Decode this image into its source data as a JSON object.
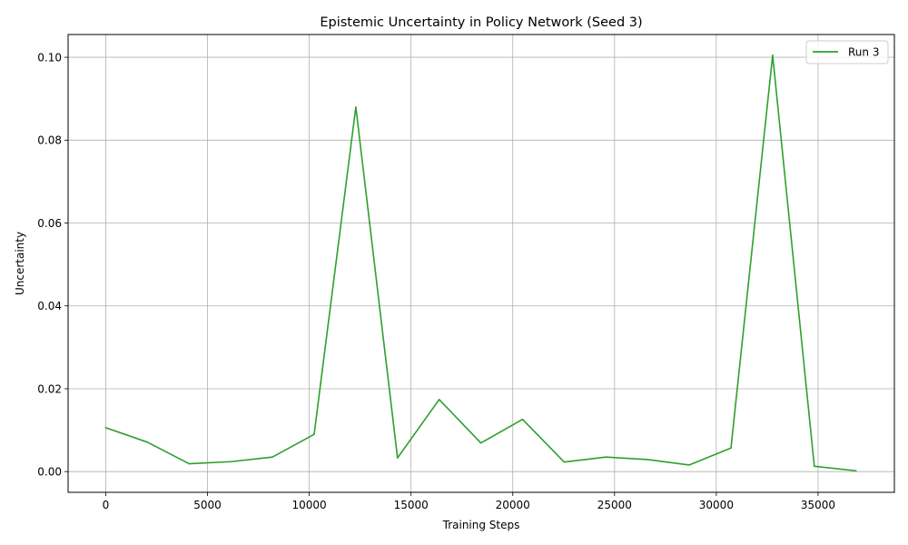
{
  "chart_data": {
    "type": "line",
    "title": "Epistemic Uncertainty in Policy Network (Seed 3)",
    "xlabel": "Training Steps",
    "ylabel": "Uncertainty",
    "xlim": [
      -1850,
      38750
    ],
    "ylim": [
      -0.005,
      0.1055
    ],
    "xticks": [
      0,
      5000,
      10000,
      15000,
      20000,
      25000,
      30000,
      35000
    ],
    "xtick_labels": [
      "0",
      "5000",
      "10000",
      "15000",
      "20000",
      "25000",
      "30000",
      "35000"
    ],
    "yticks": [
      0.0,
      0.02,
      0.04,
      0.06,
      0.08,
      0.1
    ],
    "ytick_labels": [
      "0.00",
      "0.02",
      "0.04",
      "0.06",
      "0.08",
      "0.10"
    ],
    "grid": true,
    "legend_position": "top-right",
    "series": [
      {
        "name": "Run 3",
        "color": "#2ca02c",
        "x": [
          0,
          2048,
          4096,
          6144,
          8192,
          10240,
          12288,
          14336,
          16384,
          18432,
          20480,
          22528,
          24576,
          26624,
          28672,
          30720,
          32768,
          34816,
          36864
        ],
        "y": [
          0.0106,
          0.0071,
          0.0019,
          0.0024,
          0.0035,
          0.009,
          0.088,
          0.0033,
          0.0174,
          0.0069,
          0.0126,
          0.0023,
          0.0035,
          0.0029,
          0.0016,
          0.0057,
          0.1005,
          0.0013,
          0.0002
        ]
      }
    ]
  }
}
